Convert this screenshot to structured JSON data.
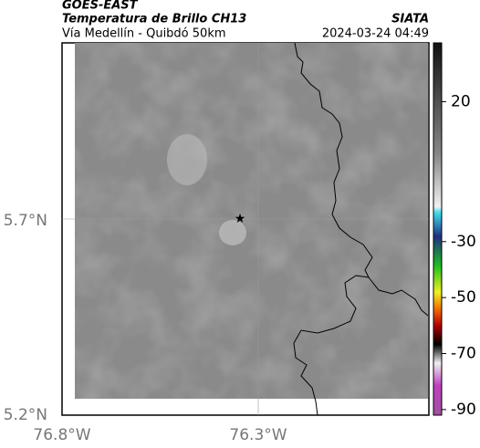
{
  "header": {
    "title": "GOES-EAST",
    "subtitle": "Temperatura de Brillo CH13",
    "region": "Vía Medellín - Quibdó 50km",
    "source": "SIATA",
    "timestamp": "2024-03-24 04:49"
  },
  "map": {
    "lat_labels": [
      "5.7°N",
      "5.2°N"
    ],
    "lon_labels": [
      "76.8°W",
      "76.3°W"
    ]
  },
  "colorbar": {
    "range": [
      -92,
      41
    ],
    "ticks": [
      20,
      -30,
      -50,
      -70,
      -90
    ]
  }
}
